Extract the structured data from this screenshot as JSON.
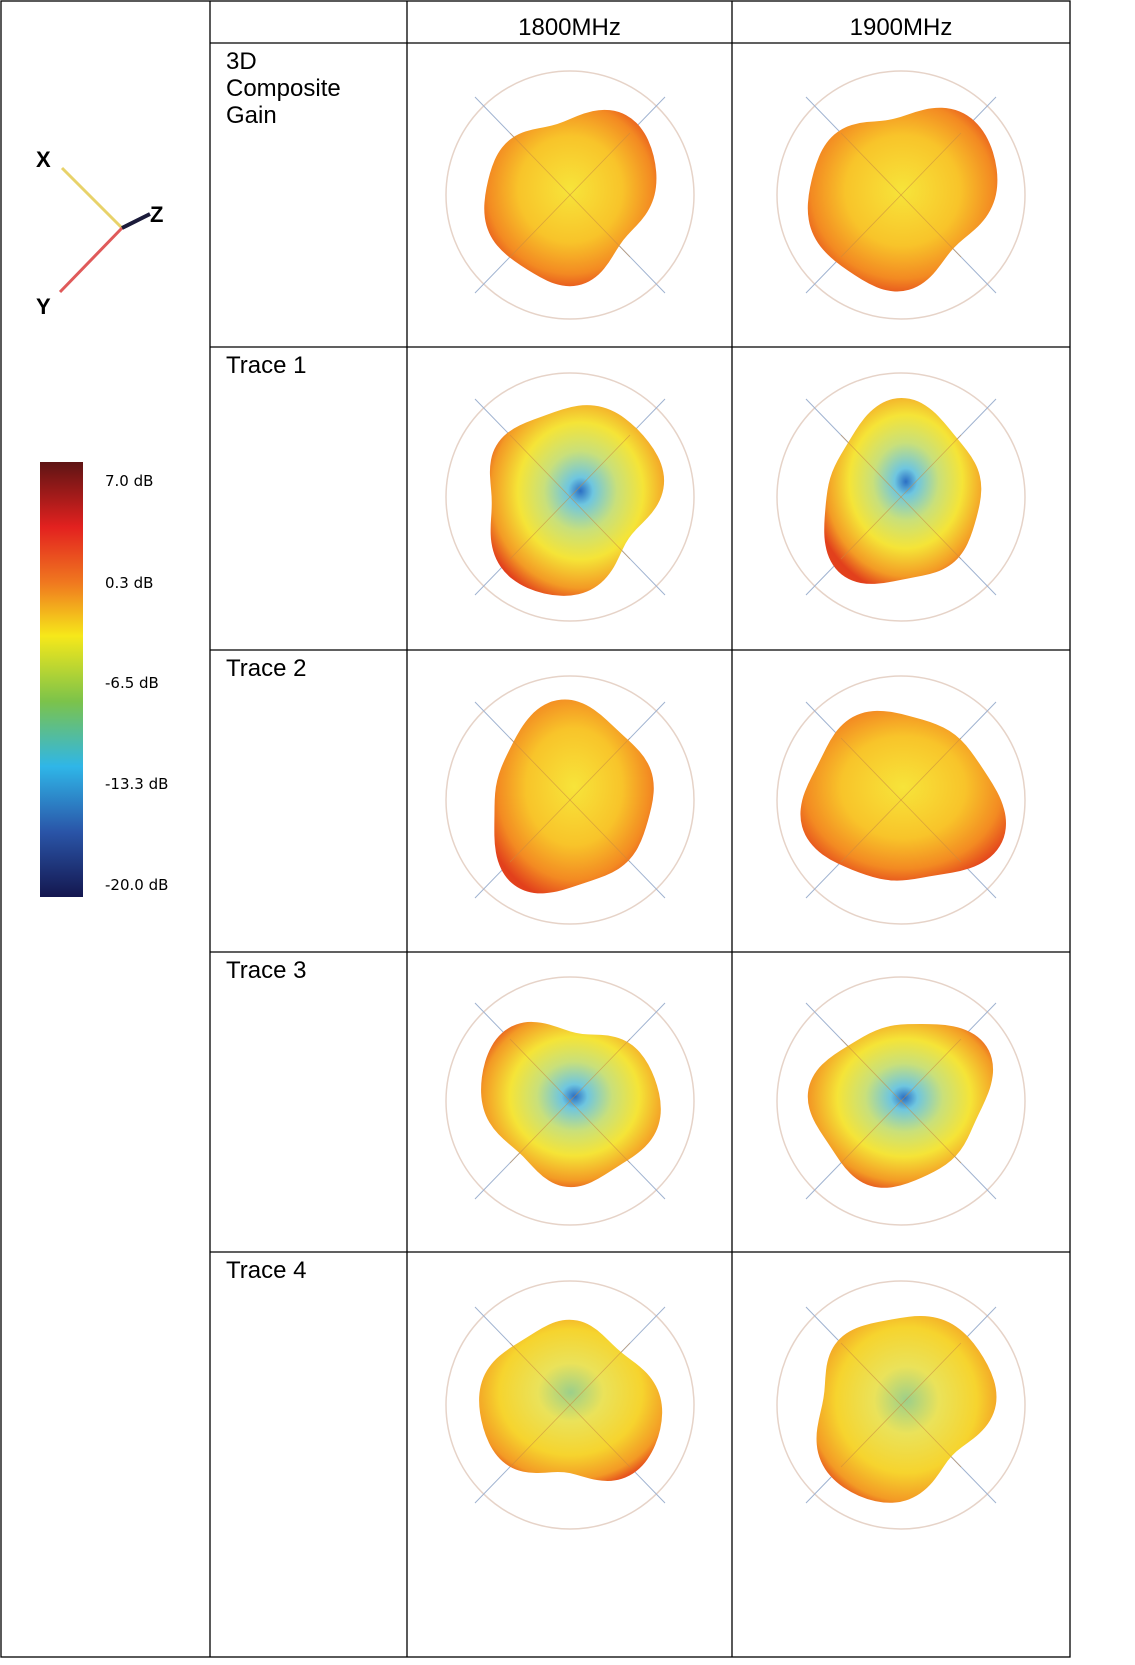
{
  "header": {
    "columns": [
      "1800MHz",
      "1900MHz"
    ]
  },
  "rows": [
    {
      "label": "3D Composite Gain"
    },
    {
      "label": "Trace 1"
    },
    {
      "label": "Trace 2"
    },
    {
      "label": "Trace 3"
    },
    {
      "label": "Trace 4"
    }
  ],
  "axes": {
    "labels": [
      "X",
      "Y",
      "Z"
    ]
  },
  "colorbar": {
    "labels": [
      "7.0 dB",
      "0.3 dB",
      "-6.5 dB",
      "-13.3 dB",
      "-20.0 dB"
    ]
  }
}
